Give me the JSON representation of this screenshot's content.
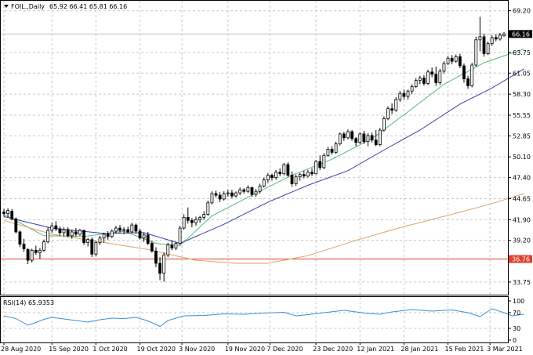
{
  "header": {
    "symbol": "FOIL.,Daily",
    "ohlc": "65.92 66.41 65.81 66.16",
    "menu_icon": "triangle-down-icon"
  },
  "rsi_header": "RSI(14) 65.9353",
  "chart_data": {
    "type": "candlestick",
    "title": "FOIL.,Daily",
    "ohlc_readout": {
      "open": 65.92,
      "high": 66.41,
      "low": 65.81,
      "close": 66.16
    },
    "price_axis": {
      "ylim": [
        32.0,
        70.5
      ],
      "ticks": [
        "69.20",
        "63.75",
        "61.05",
        "58.30",
        "55.55",
        "52.85",
        "50.10",
        "47.40",
        "44.65",
        "41.90",
        "39.20",
        "33.75"
      ]
    },
    "current_price": {
      "value": 66.16,
      "label": "66.16",
      "color": "#000000"
    },
    "horizontal_level": {
      "value": 36.76,
      "label": "36.76",
      "color": "#e0402a"
    },
    "x_labels": [
      "28 Aug 2020",
      "15 Sep 2020",
      "1 Oct 2020",
      "19 Oct 2020",
      "3 Nov 2020",
      "19 Nov 2020",
      "7 Dec 2020",
      "23 Dec 2020",
      "12 Jan 2021",
      "28 Jan 2021",
      "15 Feb 2021",
      "3 Mar 2021"
    ],
    "candles": [
      [
        42.9,
        43.3,
        42.3,
        42.7
      ],
      [
        42.7,
        43.4,
        42.2,
        43.1
      ],
      [
        43.0,
        43.3,
        41.8,
        42.0
      ],
      [
        42.0,
        42.2,
        40.1,
        40.3
      ],
      [
        40.3,
        40.5,
        38.3,
        38.7
      ],
      [
        38.7,
        39.4,
        37.7,
        38.1
      ],
      [
        38.0,
        38.2,
        36.1,
        36.6
      ],
      [
        36.6,
        38.1,
        36.3,
        37.9
      ],
      [
        37.9,
        38.5,
        37.3,
        37.6
      ],
      [
        37.6,
        38.2,
        36.8,
        37.9
      ],
      [
        37.9,
        39.3,
        37.7,
        39.0
      ],
      [
        39.0,
        40.9,
        38.8,
        40.5
      ],
      [
        40.5,
        41.5,
        40.2,
        41.1
      ],
      [
        41.1,
        41.7,
        40.4,
        40.7
      ],
      [
        40.7,
        41.0,
        39.8,
        40.2
      ],
      [
        40.2,
        40.9,
        39.7,
        40.6
      ],
      [
        40.6,
        40.9,
        39.6,
        39.8
      ],
      [
        39.8,
        40.6,
        39.4,
        40.3
      ],
      [
        40.3,
        40.8,
        39.7,
        40.0
      ],
      [
        40.0,
        40.7,
        39.8,
        40.5
      ],
      [
        40.5,
        40.6,
        38.6,
        38.9
      ],
      [
        38.9,
        39.5,
        38.4,
        39.3
      ],
      [
        39.3,
        39.6,
        37.0,
        37.4
      ],
      [
        37.4,
        39.1,
        37.1,
        38.9
      ],
      [
        38.9,
        39.8,
        38.6,
        39.5
      ],
      [
        39.5,
        40.2,
        38.9,
        40.0
      ],
      [
        40.0,
        40.4,
        39.3,
        39.7
      ],
      [
        39.7,
        40.6,
        39.5,
        40.4
      ],
      [
        40.4,
        41.1,
        40.1,
        40.8
      ],
      [
        40.8,
        41.2,
        40.2,
        40.5
      ],
      [
        40.5,
        40.9,
        40.0,
        40.6
      ],
      [
        40.6,
        41.0,
        40.1,
        40.3
      ],
      [
        40.3,
        41.5,
        40.2,
        41.2
      ],
      [
        41.2,
        41.4,
        40.1,
        40.4
      ],
      [
        40.4,
        40.7,
        39.3,
        39.5
      ],
      [
        39.5,
        40.2,
        39.0,
        39.9
      ],
      [
        39.9,
        40.3,
        38.6,
        38.8
      ],
      [
        38.8,
        39.1,
        37.6,
        37.8
      ],
      [
        37.8,
        38.3,
        35.7,
        36.2
      ],
      [
        36.2,
        37.0,
        34.0,
        34.9
      ],
      [
        34.9,
        37.6,
        33.8,
        37.3
      ],
      [
        37.3,
        38.9,
        37.0,
        38.6
      ],
      [
        38.6,
        39.2,
        37.9,
        38.2
      ],
      [
        38.2,
        39.0,
        37.9,
        38.8
      ],
      [
        38.8,
        41.1,
        38.6,
        40.8
      ],
      [
        40.8,
        42.6,
        40.6,
        42.2
      ],
      [
        42.2,
        43.5,
        41.4,
        41.8
      ],
      [
        41.8,
        42.1,
        40.9,
        41.5
      ],
      [
        41.5,
        42.3,
        41.1,
        41.9
      ],
      [
        41.9,
        42.4,
        41.5,
        42.2
      ],
      [
        42.2,
        43.0,
        41.9,
        42.6
      ],
      [
        42.6,
        44.4,
        42.4,
        44.1
      ],
      [
        44.1,
        45.6,
        43.9,
        45.3
      ],
      [
        45.3,
        45.7,
        44.8,
        45.1
      ],
      [
        45.1,
        45.5,
        44.2,
        44.6
      ],
      [
        44.6,
        45.6,
        44.4,
        45.3
      ],
      [
        45.3,
        45.8,
        44.9,
        45.4
      ],
      [
        45.4,
        45.8,
        44.7,
        45.0
      ],
      [
        45.0,
        45.6,
        44.8,
        45.4
      ],
      [
        45.4,
        46.1,
        45.1,
        45.8
      ],
      [
        45.8,
        46.0,
        45.3,
        45.6
      ],
      [
        45.6,
        46.4,
        45.4,
        46.1
      ],
      [
        46.1,
        46.2,
        44.9,
        45.2
      ],
      [
        45.2,
        45.9,
        44.9,
        45.6
      ],
      [
        45.6,
        46.6,
        45.3,
        46.3
      ],
      [
        46.3,
        47.4,
        46.1,
        47.1
      ],
      [
        47.1,
        48.0,
        46.7,
        47.7
      ],
      [
        47.7,
        47.9,
        47.0,
        47.4
      ],
      [
        47.4,
        48.4,
        47.1,
        48.1
      ],
      [
        48.1,
        48.6,
        47.6,
        47.9
      ],
      [
        47.9,
        49.3,
        47.7,
        49.1
      ],
      [
        49.1,
        49.4,
        47.5,
        47.7
      ],
      [
        47.7,
        48.2,
        46.2,
        46.6
      ],
      [
        46.6,
        47.8,
        46.3,
        47.5
      ],
      [
        47.5,
        48.0,
        47.0,
        47.8
      ],
      [
        47.8,
        48.3,
        47.3,
        47.6
      ],
      [
        47.6,
        48.4,
        47.4,
        48.1
      ],
      [
        48.1,
        48.6,
        47.6,
        47.9
      ],
      [
        47.9,
        49.7,
        47.8,
        49.5
      ],
      [
        49.5,
        50.3,
        48.4,
        48.7
      ],
      [
        48.7,
        50.6,
        48.5,
        50.3
      ],
      [
        50.3,
        51.4,
        50.1,
        51.1
      ],
      [
        51.1,
        51.5,
        50.4,
        50.7
      ],
      [
        50.7,
        52.1,
        50.5,
        51.8
      ],
      [
        51.8,
        53.3,
        51.6,
        53.1
      ],
      [
        53.1,
        53.4,
        52.2,
        52.6
      ],
      [
        52.6,
        53.7,
        52.4,
        53.4
      ],
      [
        53.4,
        53.6,
        52.2,
        52.5
      ],
      [
        52.5,
        52.7,
        51.5,
        52.0
      ],
      [
        52.0,
        53.3,
        51.8,
        53.1
      ],
      [
        53.1,
        53.5,
        51.8,
        52.1
      ],
      [
        52.1,
        53.2,
        51.5,
        52.9
      ],
      [
        52.9,
        53.3,
        52.0,
        52.3
      ],
      [
        52.3,
        53.6,
        51.5,
        51.7
      ],
      [
        51.7,
        53.9,
        51.5,
        53.6
      ],
      [
        53.6,
        55.4,
        53.4,
        55.1
      ],
      [
        55.1,
        56.7,
        54.9,
        56.4
      ],
      [
        56.4,
        57.1,
        55.7,
        56.2
      ],
      [
        56.2,
        57.9,
        56.0,
        57.6
      ],
      [
        57.6,
        58.7,
        57.3,
        58.4
      ],
      [
        58.4,
        58.9,
        57.6,
        58.0
      ],
      [
        58.0,
        58.9,
        57.6,
        58.7
      ],
      [
        58.7,
        59.6,
        58.3,
        59.3
      ],
      [
        59.3,
        60.4,
        59.1,
        60.1
      ],
      [
        60.1,
        60.7,
        59.6,
        60.4
      ],
      [
        60.4,
        60.8,
        59.4,
        59.7
      ],
      [
        59.7,
        61.5,
        59.5,
        61.2
      ],
      [
        61.2,
        61.8,
        60.5,
        60.9
      ],
      [
        60.9,
        61.9,
        59.4,
        59.8
      ],
      [
        59.8,
        61.6,
        59.5,
        61.3
      ],
      [
        61.3,
        62.6,
        61.0,
        62.3
      ],
      [
        62.3,
        63.3,
        62.1,
        63.0
      ],
      [
        63.0,
        63.4,
        62.2,
        62.6
      ],
      [
        62.6,
        63.5,
        62.4,
        63.2
      ],
      [
        63.2,
        63.6,
        61.7,
        62.0
      ],
      [
        62.0,
        62.3,
        59.8,
        60.3
      ],
      [
        60.3,
        60.7,
        59.0,
        59.4
      ],
      [
        59.4,
        62.4,
        59.2,
        62.1
      ],
      [
        62.1,
        65.8,
        61.9,
        65.4
      ],
      [
        65.4,
        68.4,
        63.9,
        65.8
      ],
      [
        65.8,
        66.2,
        63.2,
        63.6
      ],
      [
        63.6,
        65.2,
        63.4,
        64.9
      ],
      [
        64.9,
        66.0,
        64.6,
        65.7
      ],
      [
        65.7,
        66.1,
        65.2,
        65.5
      ],
      [
        65.5,
        66.3,
        65.3,
        66.0
      ],
      [
        65.92,
        66.41,
        65.81,
        66.16
      ]
    ],
    "moving_averages": [
      {
        "color": "#59b878",
        "points": [
          [
            0,
            42.6
          ],
          [
            10,
            39.8
          ],
          [
            20,
            39.7
          ],
          [
            30,
            40.4
          ],
          [
            38,
            38.8
          ],
          [
            44,
            38.5
          ],
          [
            52,
            42.4
          ],
          [
            62,
            45.1
          ],
          [
            72,
            47.7
          ],
          [
            82,
            49.8
          ],
          [
            92,
            52.5
          ],
          [
            100,
            55.6
          ],
          [
            110,
            59.6
          ],
          [
            120,
            62.4
          ],
          [
            130,
            64.2
          ]
        ]
      },
      {
        "color": "#3a3aa8",
        "points": [
          [
            0,
            42.3
          ],
          [
            12,
            40.8
          ],
          [
            25,
            40.1
          ],
          [
            35,
            40.2
          ],
          [
            44,
            38.8
          ],
          [
            55,
            41.3
          ],
          [
            66,
            44.2
          ],
          [
            76,
            46.4
          ],
          [
            86,
            48.3
          ],
          [
            96,
            51.3
          ],
          [
            104,
            53.6
          ],
          [
            114,
            57.0
          ],
          [
            122,
            59.1
          ],
          [
            130,
            61.6
          ]
        ]
      },
      {
        "color": "#e2a066",
        "points": [
          [
            0,
            41.8
          ],
          [
            12,
            40.0
          ],
          [
            24,
            39.0
          ],
          [
            36,
            38.0
          ],
          [
            48,
            36.6
          ],
          [
            58,
            36.2
          ],
          [
            66,
            36.2
          ],
          [
            76,
            37.2
          ],
          [
            88,
            39.2
          ],
          [
            100,
            41.0
          ],
          [
            112,
            42.6
          ],
          [
            122,
            44.0
          ],
          [
            130,
            45.3
          ]
        ]
      }
    ],
    "rsi": {
      "label": "RSI(14)",
      "value": 65.9353,
      "ticks": [
        "100",
        "70",
        "30",
        "0"
      ],
      "ylim": [
        0,
        100
      ],
      "levels": [
        30,
        70
      ],
      "color": "#3a8fd8",
      "points": [
        [
          0,
          62
        ],
        [
          3,
          55
        ],
        [
          6,
          38
        ],
        [
          8,
          45
        ],
        [
          10,
          53
        ],
        [
          12,
          58
        ],
        [
          15,
          54
        ],
        [
          18,
          50
        ],
        [
          21,
          46
        ],
        [
          24,
          52
        ],
        [
          27,
          56
        ],
        [
          30,
          55
        ],
        [
          33,
          58
        ],
        [
          36,
          49
        ],
        [
          39,
          35
        ],
        [
          41,
          50
        ],
        [
          45,
          62
        ],
        [
          50,
          63
        ],
        [
          55,
          67
        ],
        [
          60,
          66
        ],
        [
          65,
          69
        ],
        [
          70,
          71
        ],
        [
          73,
          62
        ],
        [
          76,
          65
        ],
        [
          80,
          70
        ],
        [
          85,
          76
        ],
        [
          88,
          72
        ],
        [
          91,
          68
        ],
        [
          94,
          66
        ],
        [
          97,
          72
        ],
        [
          102,
          78
        ],
        [
          107,
          74
        ],
        [
          112,
          77
        ],
        [
          116,
          70
        ],
        [
          119,
          60
        ],
        [
          122,
          80
        ],
        [
          125,
          70
        ],
        [
          127,
          62
        ],
        [
          130,
          66
        ]
      ]
    }
  }
}
